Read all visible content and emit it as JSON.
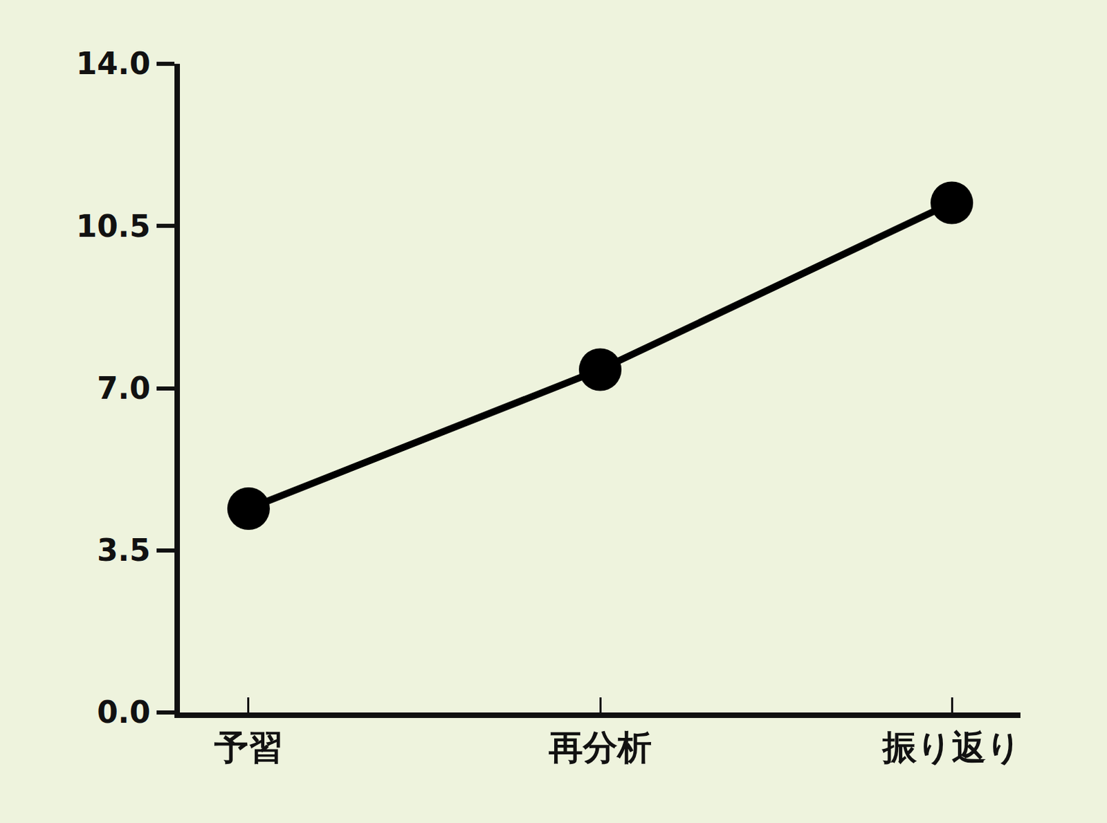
{
  "chart_data": {
    "type": "line",
    "categories": [
      "予習",
      "再分析",
      "振り返り"
    ],
    "values": [
      4.4,
      7.4,
      11.0
    ],
    "color": "#000000",
    "marker": "circle",
    "line_style": "solid",
    "ylim": [
      0,
      14
    ],
    "yticks": [
      {
        "value": 0,
        "label": "0.0"
      },
      3.5,
      {
        "value": 7,
        "label": "7.0"
      },
      10.5,
      {
        "value": 14,
        "label": "14.0"
      }
    ],
    "grid": false
  }
}
